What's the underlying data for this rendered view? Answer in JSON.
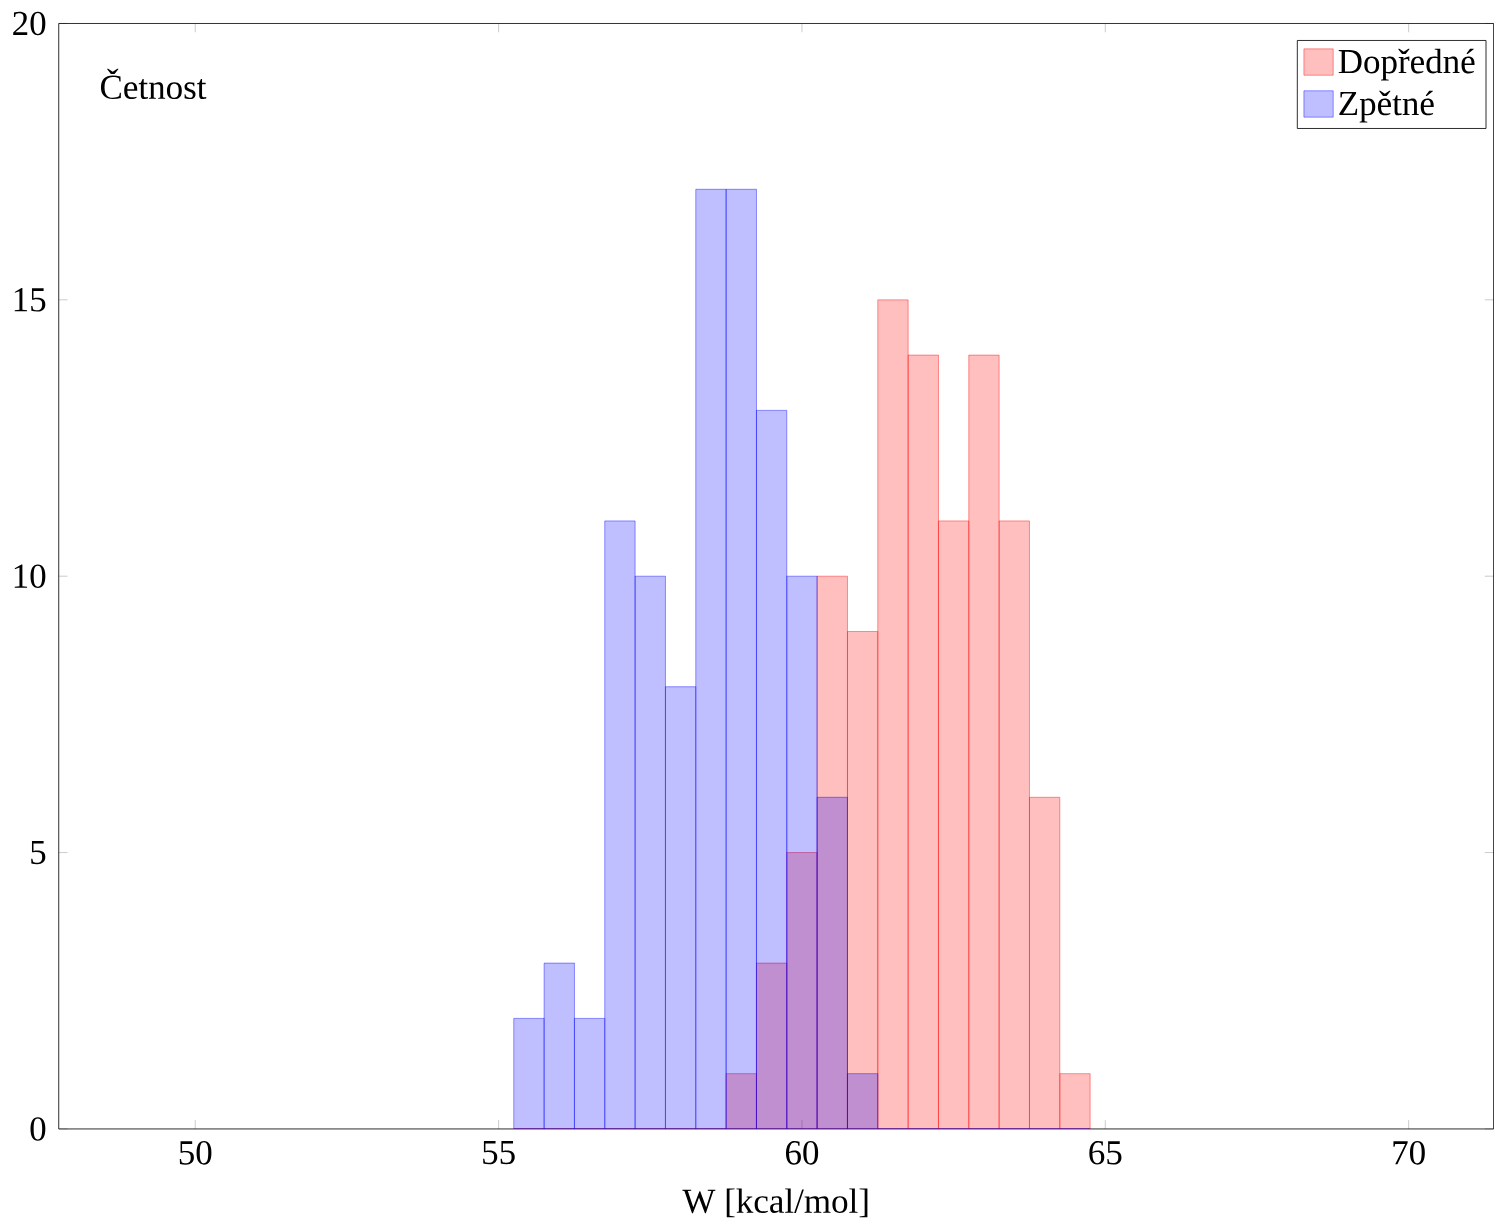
{
  "chart_data": {
    "type": "histogram",
    "xlabel": "W [kcal/mol]",
    "ylabel": "Četnost",
    "xlim": [
      47.75,
      71.4
    ],
    "ylim": [
      0,
      20
    ],
    "xticks": [
      50,
      55,
      60,
      65,
      70
    ],
    "yticks": [
      0,
      5,
      10,
      15,
      20
    ],
    "legend": "top right",
    "grid": false,
    "bins": [
      55.25,
      55.75,
      56.25,
      56.75,
      57.25,
      57.75,
      58.25,
      58.75,
      59.25,
      59.75,
      60.25,
      60.75,
      61.25,
      61.75,
      62.25,
      62.75,
      63.25,
      63.75,
      64.25,
      64.75
    ],
    "series": [
      {
        "name": "Dopředné",
        "color": "#ff0000",
        "values": [
          0,
          0,
          0,
          0,
          0,
          0,
          0,
          1,
          3,
          5,
          10,
          9,
          15,
          14,
          11,
          14,
          11,
          6,
          1
        ]
      },
      {
        "name": "Zpětné",
        "color": "#0000ff",
        "values": [
          2,
          3,
          2,
          11,
          10,
          8,
          17,
          17,
          13,
          10,
          6,
          1,
          0,
          0,
          0,
          0,
          0,
          0,
          0
        ]
      }
    ]
  }
}
